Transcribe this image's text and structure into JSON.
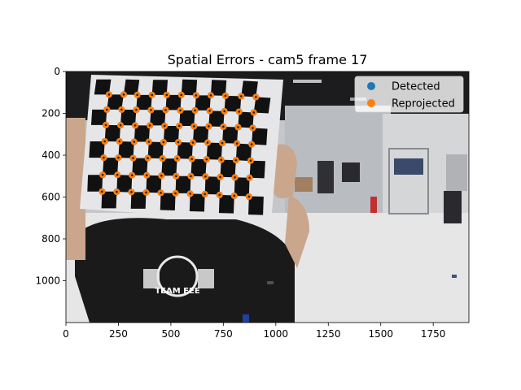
{
  "chart_data": {
    "type": "scatter",
    "title": "Spatial Errors - cam5 frame 17",
    "xlabel": "",
    "ylabel": "",
    "xlim": [
      0,
      1920
    ],
    "ylim": [
      1200,
      0
    ],
    "y_inverted": true,
    "xticks": [
      0,
      250,
      500,
      750,
      1000,
      1250,
      1500,
      1750
    ],
    "yticks": [
      0,
      200,
      400,
      600,
      800,
      1000
    ],
    "legend_position": "top-right",
    "background": "camera image: person holding checkerboard calibration target in a lab",
    "series": [
      {
        "name": "Detected",
        "color": "#1f77b4",
        "points": [
          [
            205,
            110
          ],
          [
            275,
            110
          ],
          [
            340,
            112
          ],
          [
            410,
            112
          ],
          [
            480,
            112
          ],
          [
            550,
            112
          ],
          [
            620,
            114
          ],
          [
            690,
            114
          ],
          [
            760,
            116
          ],
          [
            835,
            118
          ],
          [
            905,
            122
          ],
          [
            195,
            182
          ],
          [
            265,
            182
          ],
          [
            335,
            183
          ],
          [
            405,
            184
          ],
          [
            475,
            184
          ],
          [
            545,
            186
          ],
          [
            615,
            186
          ],
          [
            685,
            188
          ],
          [
            755,
            190
          ],
          [
            825,
            192
          ],
          [
            895,
            196
          ],
          [
            190,
            256
          ],
          [
            260,
            257
          ],
          [
            330,
            258
          ],
          [
            400,
            258
          ],
          [
            470,
            260
          ],
          [
            540,
            260
          ],
          [
            610,
            262
          ],
          [
            680,
            262
          ],
          [
            750,
            264
          ],
          [
            820,
            266
          ],
          [
            890,
            270
          ],
          [
            185,
            334
          ],
          [
            255,
            334
          ],
          [
            325,
            336
          ],
          [
            395,
            336
          ],
          [
            465,
            338
          ],
          [
            535,
            338
          ],
          [
            605,
            340
          ],
          [
            675,
            340
          ],
          [
            745,
            342
          ],
          [
            815,
            344
          ],
          [
            885,
            348
          ],
          [
            180,
            412
          ],
          [
            250,
            412
          ],
          [
            320,
            414
          ],
          [
            390,
            414
          ],
          [
            460,
            416
          ],
          [
            530,
            416
          ],
          [
            600,
            418
          ],
          [
            670,
            420
          ],
          [
            740,
            422
          ],
          [
            810,
            424
          ],
          [
            880,
            426
          ],
          [
            175,
            494
          ],
          [
            245,
            494
          ],
          [
            315,
            496
          ],
          [
            385,
            496
          ],
          [
            455,
            498
          ],
          [
            525,
            500
          ],
          [
            595,
            500
          ],
          [
            665,
            502
          ],
          [
            735,
            504
          ],
          [
            805,
            506
          ],
          [
            875,
            508
          ],
          [
            172,
            574
          ],
          [
            242,
            575
          ],
          [
            312,
            576
          ],
          [
            382,
            578
          ],
          [
            452,
            580
          ],
          [
            522,
            582
          ],
          [
            592,
            584
          ],
          [
            662,
            586
          ],
          [
            732,
            590
          ],
          [
            802,
            594
          ],
          [
            872,
            598
          ]
        ]
      },
      {
        "name": "Reprojected",
        "color": "#ff7f0e",
        "points": [
          [
            205,
            110
          ],
          [
            275,
            110
          ],
          [
            340,
            112
          ],
          [
            410,
            112
          ],
          [
            480,
            112
          ],
          [
            550,
            112
          ],
          [
            620,
            114
          ],
          [
            690,
            114
          ],
          [
            760,
            116
          ],
          [
            835,
            118
          ],
          [
            905,
            122
          ],
          [
            195,
            182
          ],
          [
            265,
            182
          ],
          [
            335,
            183
          ],
          [
            405,
            184
          ],
          [
            475,
            184
          ],
          [
            545,
            186
          ],
          [
            615,
            186
          ],
          [
            685,
            188
          ],
          [
            755,
            190
          ],
          [
            825,
            192
          ],
          [
            895,
            196
          ],
          [
            190,
            256
          ],
          [
            260,
            257
          ],
          [
            330,
            258
          ],
          [
            400,
            258
          ],
          [
            470,
            260
          ],
          [
            540,
            260
          ],
          [
            610,
            262
          ],
          [
            680,
            262
          ],
          [
            750,
            264
          ],
          [
            820,
            266
          ],
          [
            890,
            270
          ],
          [
            185,
            334
          ],
          [
            255,
            334
          ],
          [
            325,
            336
          ],
          [
            395,
            336
          ],
          [
            465,
            338
          ],
          [
            535,
            338
          ],
          [
            605,
            340
          ],
          [
            675,
            340
          ],
          [
            745,
            342
          ],
          [
            815,
            344
          ],
          [
            885,
            348
          ],
          [
            180,
            412
          ],
          [
            250,
            412
          ],
          [
            320,
            414
          ],
          [
            390,
            414
          ],
          [
            460,
            416
          ],
          [
            530,
            416
          ],
          [
            600,
            418
          ],
          [
            670,
            420
          ],
          [
            740,
            422
          ],
          [
            810,
            424
          ],
          [
            880,
            426
          ],
          [
            175,
            494
          ],
          [
            245,
            494
          ],
          [
            315,
            496
          ],
          [
            385,
            496
          ],
          [
            455,
            498
          ],
          [
            525,
            500
          ],
          [
            595,
            500
          ],
          [
            665,
            502
          ],
          [
            735,
            504
          ],
          [
            805,
            506
          ],
          [
            875,
            508
          ],
          [
            172,
            574
          ],
          [
            242,
            575
          ],
          [
            312,
            576
          ],
          [
            382,
            578
          ],
          [
            452,
            580
          ],
          [
            522,
            582
          ],
          [
            592,
            584
          ],
          [
            662,
            586
          ],
          [
            732,
            590
          ],
          [
            802,
            594
          ],
          [
            872,
            598
          ]
        ]
      }
    ],
    "background_shirt_text": [
      "TEAM EEE"
    ]
  }
}
